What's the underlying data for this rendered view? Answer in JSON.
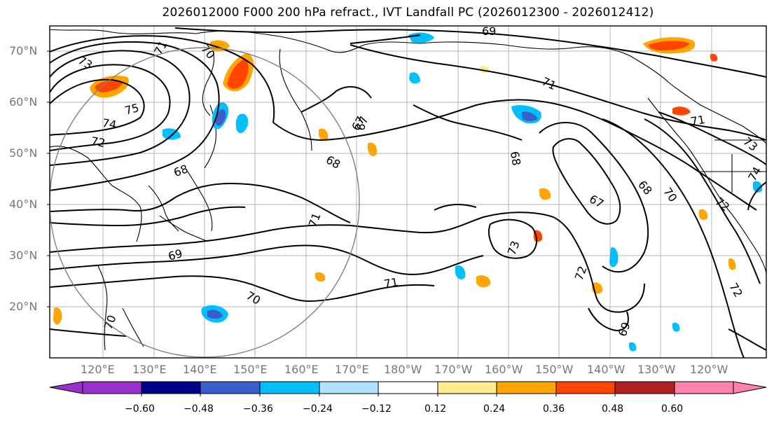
{
  "title": "2026012000 F000 200 hPa refract., IVT Landfall PC (2026012300 - 2026012412)",
  "map": {
    "lat_ticks": [
      "70°N",
      "60°N",
      "50°N",
      "40°N",
      "30°N",
      "20°N"
    ],
    "lon_ticks": [
      "120°E",
      "130°E",
      "140°E",
      "150°E",
      "160°E",
      "170°E",
      "180°W",
      "170°W",
      "160°W",
      "150°W",
      "140°W",
      "130°W",
      "120°W"
    ],
    "contour_labels": [
      "69",
      "71",
      "70",
      "73",
      "75",
      "74",
      "72",
      "68",
      "67",
      "68",
      "71",
      "69",
      "71",
      "70",
      "71",
      "67",
      "68",
      "68",
      "70",
      "67",
      "71",
      "73",
      "72",
      "69",
      "72",
      "73",
      "74",
      "72",
      "70"
    ]
  },
  "colorbar": {
    "colors": [
      "#9932cc",
      "#00008b",
      "#3a5fcd",
      "#00bfff",
      "#b0e2ff",
      "#ffffff",
      "#ffec8b",
      "#ffa500",
      "#ff4500",
      "#b22222",
      "#ff82ab"
    ],
    "tick_labels": [
      "−0.60",
      "−0.48",
      "−0.36",
      "−0.24",
      "−0.12",
      "0.12",
      "0.24",
      "0.36",
      "0.48",
      "0.60"
    ]
  }
}
